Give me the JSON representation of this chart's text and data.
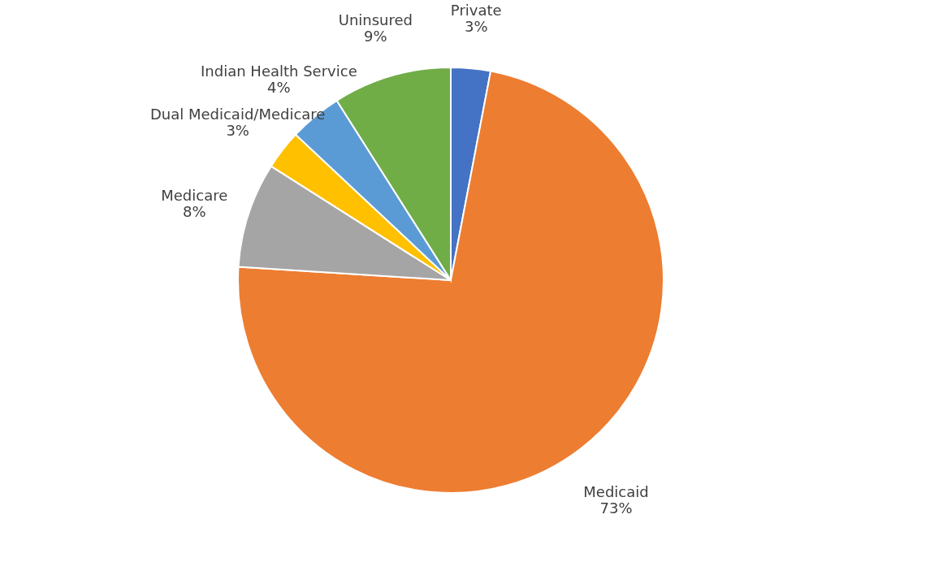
{
  "chart_data": {
    "type": "pie",
    "categories": [
      "Private",
      "Medicaid",
      "Medicare",
      "Dual Medicaid/Medicare",
      "Indian Health Service",
      "Uninsured"
    ],
    "values": [
      3,
      73,
      8,
      3,
      4,
      9
    ],
    "value_labels": [
      "3%",
      "73%",
      "8%",
      "3%",
      "4%",
      "9%"
    ],
    "colors": [
      "#4472c4",
      "#ed7d31",
      "#a5a5a5",
      "#ffc000",
      "#5b9bd5",
      "#70ad47"
    ],
    "legend": false
  }
}
